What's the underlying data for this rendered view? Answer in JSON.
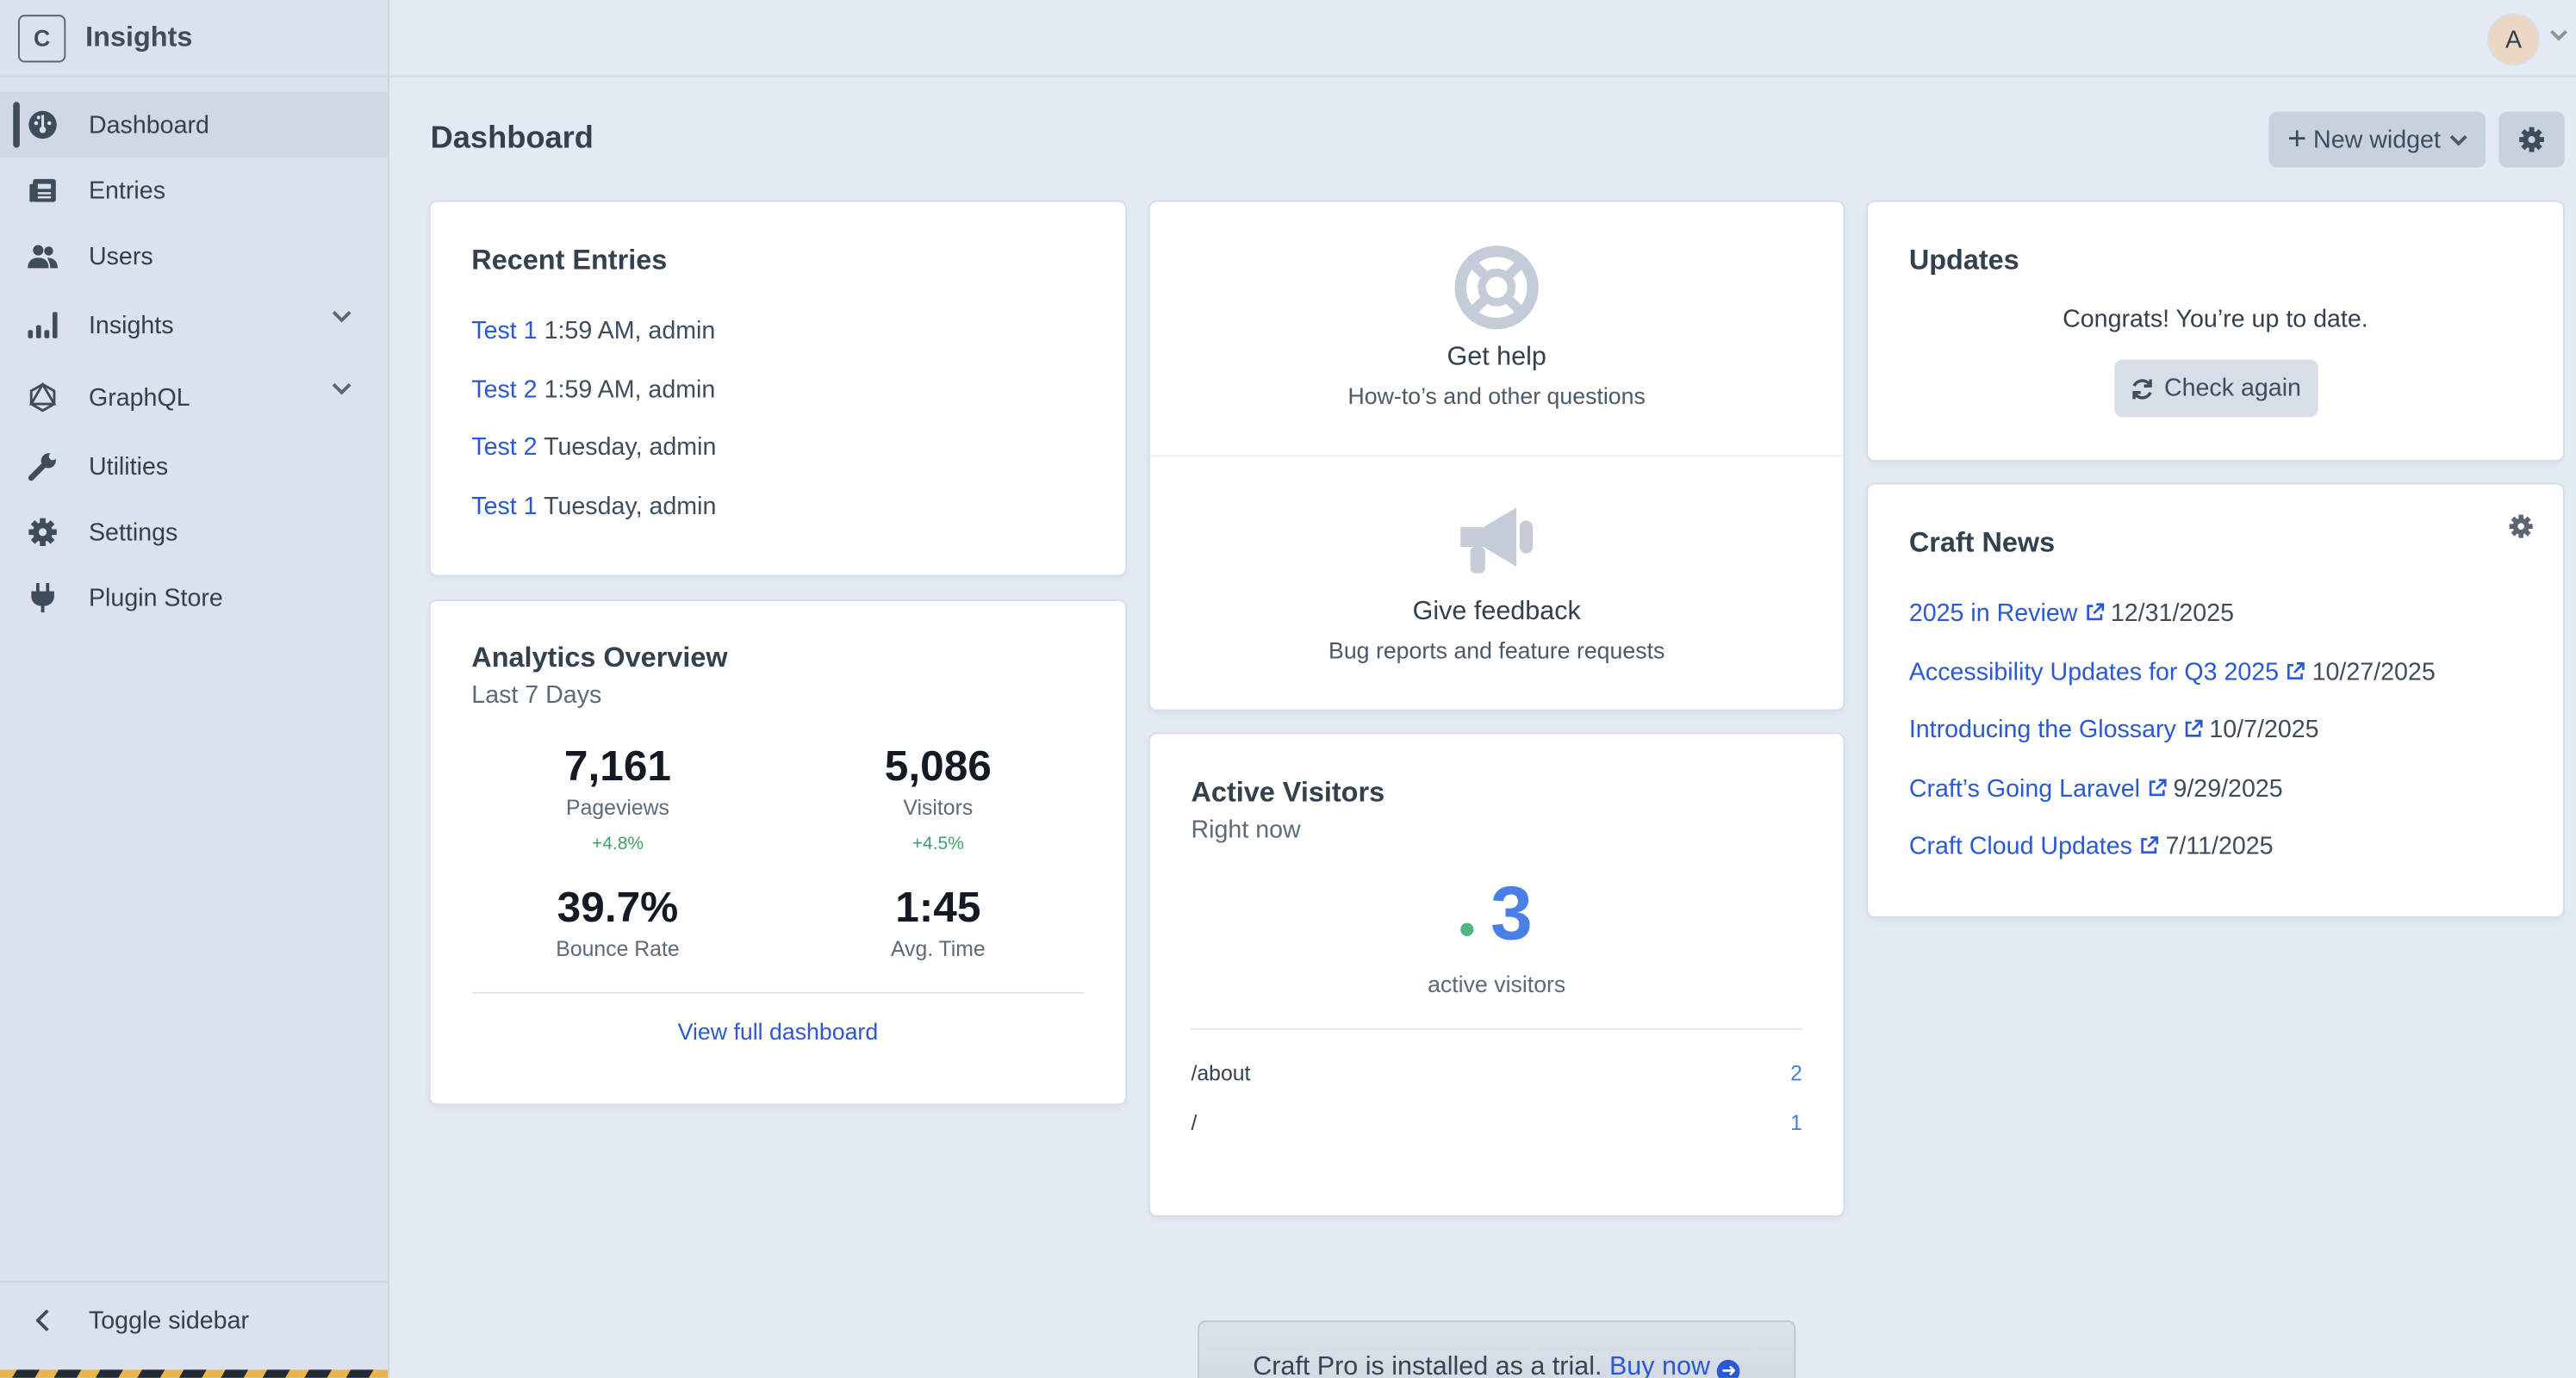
{
  "app": {
    "logo_letter": "C",
    "name": "Insights"
  },
  "sidebar": {
    "items": [
      {
        "label": "Dashboard",
        "icon": "gauge-icon",
        "active": true
      },
      {
        "label": "Entries",
        "icon": "newspaper-icon"
      },
      {
        "label": "Users",
        "icon": "users-icon"
      },
      {
        "label": "Insights",
        "icon": "bar-chart-icon",
        "expandable": true
      },
      {
        "label": "GraphQL",
        "icon": "graphql-icon",
        "expandable": true
      },
      {
        "label": "Utilities",
        "icon": "wrench-icon"
      },
      {
        "label": "Settings",
        "icon": "gear-icon"
      },
      {
        "label": "Plugin Store",
        "icon": "plug-icon"
      }
    ],
    "toggle_label": "Toggle sidebar"
  },
  "header": {
    "avatar_letter": "A"
  },
  "page": {
    "title": "Dashboard",
    "new_widget_label": "New widget"
  },
  "recent_entries": {
    "title": "Recent Entries",
    "items": [
      {
        "title": "Test 1",
        "meta": "1:59 AM, admin"
      },
      {
        "title": "Test 2",
        "meta": "1:59 AM, admin"
      },
      {
        "title": "Test 2",
        "meta": "Tuesday, admin"
      },
      {
        "title": "Test 1",
        "meta": "Tuesday, admin"
      }
    ]
  },
  "analytics": {
    "title": "Analytics Overview",
    "subtitle": "Last 7 Days",
    "stats": [
      {
        "value": "7,161",
        "label": "Pageviews",
        "change": "+4.8%"
      },
      {
        "value": "5,086",
        "label": "Visitors",
        "change": "+4.5%"
      },
      {
        "value": "39.7%",
        "label": "Bounce Rate"
      },
      {
        "value": "1:45",
        "label": "Avg. Time"
      }
    ],
    "link": "View full dashboard"
  },
  "help": {
    "title": "Get help",
    "subtitle": "How-to’s and other questions"
  },
  "feedback": {
    "title": "Give feedback",
    "subtitle": "Bug reports and feature requests"
  },
  "active_visitors": {
    "title": "Active Visitors",
    "subtitle": "Right now",
    "count": "3",
    "count_label": "active visitors",
    "pages": [
      {
        "path": "/about",
        "count": "2"
      },
      {
        "path": "/",
        "count": "1"
      }
    ]
  },
  "updates": {
    "title": "Updates",
    "message": "Congrats! You’re up to date.",
    "button": "Check again"
  },
  "news": {
    "title": "Craft News",
    "items": [
      {
        "title": "2025 in Review",
        "date": "12/31/2025"
      },
      {
        "title": "Accessibility Updates for Q3 2025",
        "date": "10/27/2025"
      },
      {
        "title": "Introducing the Glossary",
        "date": "10/7/2025"
      },
      {
        "title": "Craft’s Going Laravel",
        "date": "9/29/2025"
      },
      {
        "title": "Craft Cloud Updates",
        "date": "7/11/2025"
      }
    ]
  },
  "banner": {
    "text": "Craft Pro is installed as a trial.",
    "link": "Buy now"
  },
  "colors": {
    "link": "#2a59d6",
    "accent_blue": "#4a7fe8",
    "positive": "#3ea36a",
    "sidebar_bg": "#dbe2ed",
    "main_bg": "#e4eaf4"
  }
}
